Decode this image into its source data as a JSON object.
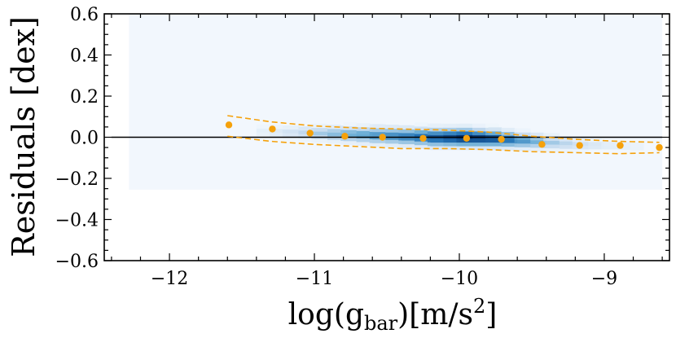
{
  "chart_data": {
    "type": "scatter",
    "xlabel": {
      "main": "log(g",
      "sub": "bar",
      "rest": ")[m/s",
      "sup": "2",
      "end": "]"
    },
    "ylabel": "Residuals [dex]",
    "xlim": [
      -12.45,
      -8.55
    ],
    "ylim": [
      -0.6,
      0.6
    ],
    "x_ticks": [
      -12,
      -11,
      -10,
      -9
    ],
    "x_tick_labels": [
      "−12",
      "−11",
      "−10",
      "−9"
    ],
    "y_ticks": [
      -0.6,
      -0.4,
      -0.2,
      0.0,
      0.2,
      0.4,
      0.6
    ],
    "y_tick_labels": [
      "−0.6",
      "−0.4",
      "−0.2",
      "0.0",
      "0.2",
      "0.4",
      "0.6"
    ],
    "reference_line": {
      "y": 0.0,
      "x_range": [
        -12.4,
        -8.6
      ],
      "color": "#000000"
    },
    "background_box": {
      "x_range": [
        -12.28,
        -8.6
      ],
      "y_range": [
        -0.255,
        0.6
      ],
      "color": "#f2f7fd"
    },
    "density": {
      "colormap": "Blues",
      "x_bin_width": 0.09,
      "y_bin_height": 0.018,
      "columns": [
        {
          "x": -11.4,
          "center": 0.03,
          "half_height": 0.04,
          "intensity": 0.1
        },
        {
          "x": -11.2,
          "center": 0.025,
          "half_height": 0.04,
          "intensity": 0.2
        },
        {
          "x": -11.0,
          "center": 0.02,
          "half_height": 0.045,
          "intensity": 0.35
        },
        {
          "x": -10.8,
          "center": 0.015,
          "half_height": 0.05,
          "intensity": 0.5
        },
        {
          "x": -10.6,
          "center": 0.01,
          "half_height": 0.055,
          "intensity": 0.6
        },
        {
          "x": -10.4,
          "center": 0.005,
          "half_height": 0.055,
          "intensity": 0.7
        },
        {
          "x": -10.2,
          "center": 0.0,
          "half_height": 0.06,
          "intensity": 0.85
        },
        {
          "x": -10.0,
          "center": 0.0,
          "half_height": 0.06,
          "intensity": 1.0
        },
        {
          "x": -9.8,
          "center": -0.005,
          "half_height": 0.055,
          "intensity": 0.9
        },
        {
          "x": -9.6,
          "center": -0.015,
          "half_height": 0.05,
          "intensity": 0.6
        },
        {
          "x": -9.4,
          "center": -0.025,
          "half_height": 0.045,
          "intensity": 0.35
        },
        {
          "x": -9.2,
          "center": -0.035,
          "half_height": 0.04,
          "intensity": 0.2
        },
        {
          "x": -9.0,
          "center": -0.04,
          "half_height": 0.035,
          "intensity": 0.12
        },
        {
          "x": -8.8,
          "center": -0.045,
          "half_height": 0.035,
          "intensity": 0.08
        }
      ]
    },
    "series": [
      {
        "name": "binned medians",
        "color": "#f5a10b",
        "x": [
          -11.59,
          -11.29,
          -11.03,
          -10.79,
          -10.53,
          -10.25,
          -9.95,
          -9.71,
          -9.43,
          -9.17,
          -8.89,
          -8.62
        ],
        "y": [
          0.06,
          0.04,
          0.02,
          0.005,
          0.0,
          -0.005,
          -0.005,
          -0.01,
          -0.035,
          -0.04,
          -0.04,
          -0.05
        ]
      },
      {
        "name": "upper scatter",
        "style": "dashed",
        "color": "#f5a10b",
        "x": [
          -11.6,
          -11.3,
          -11.0,
          -10.7,
          -10.4,
          -10.1,
          -9.8,
          -9.5,
          -9.2,
          -8.9,
          -8.62
        ],
        "y": [
          0.105,
          0.075,
          0.055,
          0.045,
          0.04,
          0.035,
          0.025,
          0.005,
          -0.01,
          -0.02,
          -0.025
        ]
      },
      {
        "name": "lower scatter",
        "style": "dashed",
        "color": "#f5a10b",
        "x": [
          -11.6,
          -11.3,
          -11.0,
          -10.7,
          -10.4,
          -10.1,
          -9.8,
          -9.5,
          -9.2,
          -8.9,
          -8.62
        ],
        "y": [
          0.005,
          -0.02,
          -0.035,
          -0.045,
          -0.055,
          -0.055,
          -0.06,
          -0.07,
          -0.075,
          -0.08,
          -0.075
        ]
      }
    ]
  }
}
